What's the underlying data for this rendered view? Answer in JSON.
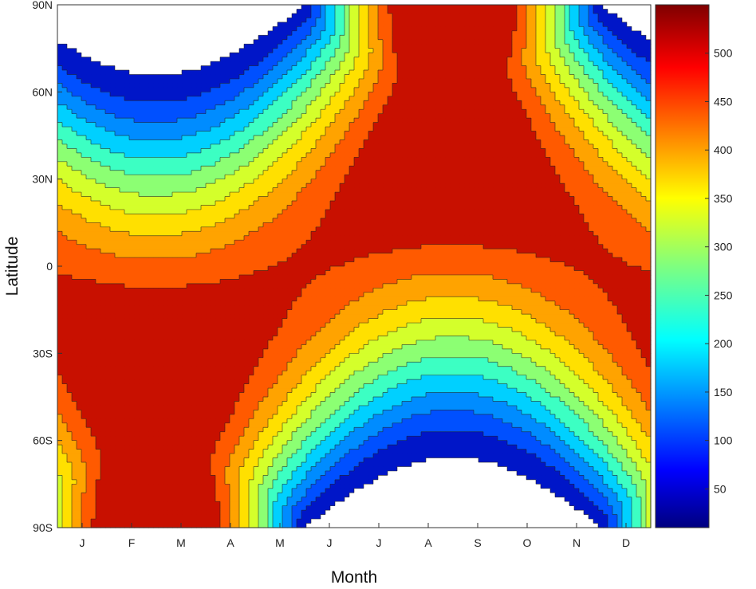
{
  "chart_data": {
    "type": "heatmap",
    "subtype": "filled-contour",
    "title": "",
    "xlabel": "Month",
    "ylabel": "Latitude",
    "x_tick_labels": [
      "J",
      "F",
      "M",
      "A",
      "M",
      "J",
      "J",
      "A",
      "S",
      "O",
      "N",
      "D"
    ],
    "y_tick_labels": [
      "90N",
      "60N",
      "30N",
      "0",
      "30S",
      "60S",
      "90S"
    ],
    "y_tick_values": [
      90,
      60,
      30,
      0,
      -30,
      -60,
      -90
    ],
    "ylim": [
      -90,
      90
    ],
    "xlim": [
      0.5,
      12.5
    ],
    "colorbar": {
      "range": [
        10,
        550
      ],
      "tick_values": [
        50,
        100,
        150,
        200,
        250,
        300,
        350,
        400,
        450,
        500
      ],
      "tick_labels": [
        "50",
        "100",
        "150",
        "200",
        "250",
        "300",
        "350",
        "400",
        "450",
        "500"
      ],
      "colormap": "jet"
    },
    "contour_levels": [
      0,
      50,
      100,
      150,
      200,
      250,
      300,
      350,
      400,
      450,
      500
    ],
    "field_description_values": {
      "equator_plateau": 420,
      "nh_summer_max_at_pole": 520,
      "sh_summer_max_at_pole": 525,
      "polar_night": 0
    },
    "band_colors": [
      "#00007f",
      "#0016c8",
      "#0050ff",
      "#008cff",
      "#00d0ff",
      "#3cffc3",
      "#8cff73",
      "#d4ff2b",
      "#ffe000",
      "#ffa300",
      "#ff5a00",
      "#c81000"
    ],
    "background_color": "#ffffff",
    "grid": false
  }
}
